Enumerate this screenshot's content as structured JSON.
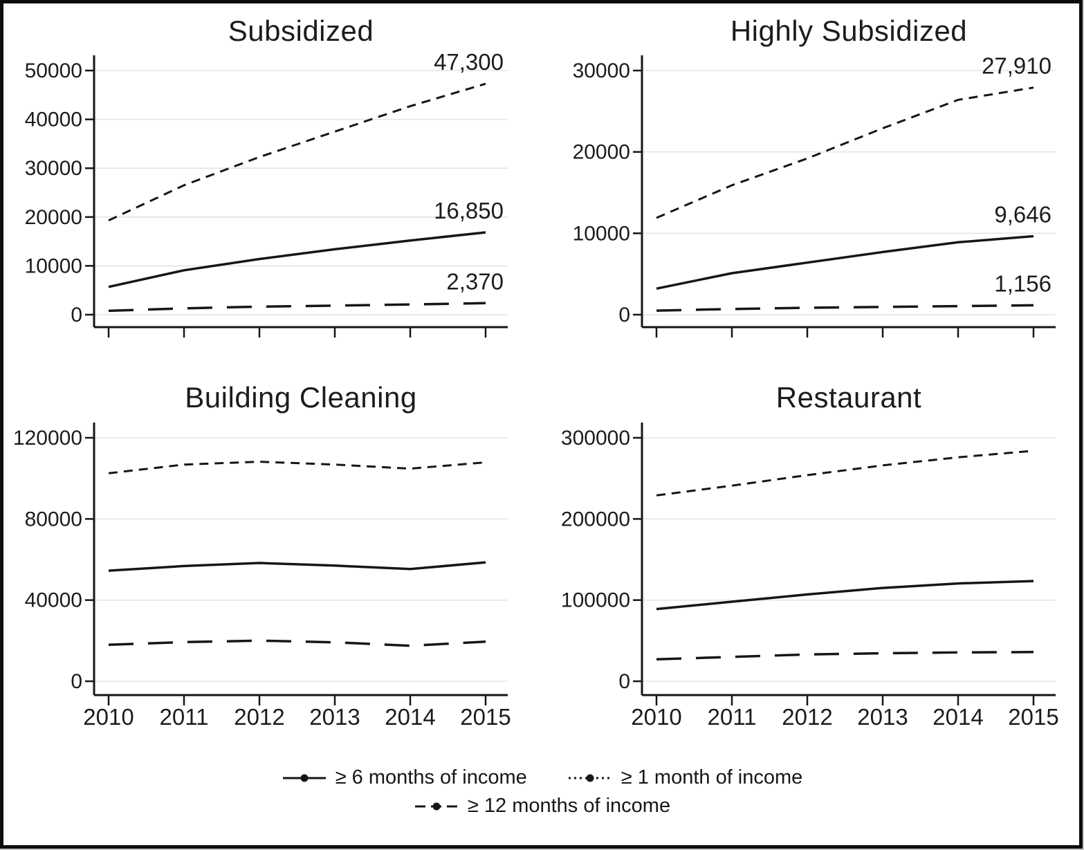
{
  "figure": {
    "colors": {
      "line": "#161616",
      "grid": "#e4e4e4",
      "text": "#1c1c1c",
      "background": "#ffffff",
      "border": "#0d0d0d"
    }
  },
  "legend": {
    "items": [
      {
        "label": "≥ 6 months of income",
        "style": "solid"
      },
      {
        "label": "≥ 1 month of income",
        "style": "dotted"
      },
      {
        "label": "≥ 12 months of income",
        "style": "longdash"
      }
    ]
  },
  "chart_data": [
    {
      "type": "line",
      "title": "Subsidized",
      "x": [
        2010,
        2011,
        2012,
        2013,
        2014,
        2015
      ],
      "xlabel": "",
      "ylabel": "",
      "ylim": [
        0,
        50000
      ],
      "yticks": [
        0,
        10000,
        20000,
        30000,
        40000,
        50000
      ],
      "grid": true,
      "show_x_labels": false,
      "legend_position": "none",
      "series": [
        {
          "name": "≥ 1 month of income",
          "style": "shortdash",
          "values": [
            19300,
            26500,
            32300,
            37500,
            42700,
            47300
          ],
          "end_label": "47,300"
        },
        {
          "name": "≥ 6 months of income",
          "style": "solid",
          "values": [
            5700,
            9100,
            11400,
            13400,
            15200,
            16850
          ],
          "end_label": "16,850"
        },
        {
          "name": "≥ 12 months of income",
          "style": "longdash",
          "values": [
            800,
            1300,
            1650,
            1850,
            2100,
            2370
          ],
          "end_label": "2,370"
        }
      ]
    },
    {
      "type": "line",
      "title": "Highly Subsidized",
      "x": [
        2010,
        2011,
        2012,
        2013,
        2014,
        2015
      ],
      "xlabel": "",
      "ylabel": "",
      "ylim": [
        0,
        30000
      ],
      "yticks": [
        0,
        10000,
        20000,
        30000
      ],
      "grid": true,
      "show_x_labels": false,
      "legend_position": "none",
      "series": [
        {
          "name": "≥ 1 month of income",
          "style": "shortdash",
          "values": [
            11900,
            15900,
            19200,
            22900,
            26400,
            27910
          ],
          "end_label": "27,910"
        },
        {
          "name": "≥ 6 months of income",
          "style": "solid",
          "values": [
            3200,
            5100,
            6400,
            7700,
            8900,
            9646
          ],
          "end_label": "9,646"
        },
        {
          "name": "≥ 12 months of income",
          "style": "longdash",
          "values": [
            500,
            700,
            850,
            950,
            1050,
            1156
          ],
          "end_label": "1,156"
        }
      ]
    },
    {
      "type": "line",
      "title": "Building Cleaning",
      "x": [
        2010,
        2011,
        2012,
        2013,
        2014,
        2015
      ],
      "xlabel": "",
      "ylabel": "",
      "ylim": [
        0,
        120000
      ],
      "yticks": [
        0,
        40000,
        80000,
        120000
      ],
      "grid": true,
      "show_x_labels": true,
      "legend_position": "none",
      "series": [
        {
          "name": "≥ 1 month of income",
          "style": "shortdash",
          "values": [
            102500,
            106800,
            108200,
            106800,
            104800,
            107900
          ]
        },
        {
          "name": "≥ 6 months of income",
          "style": "solid",
          "values": [
            54500,
            56800,
            58300,
            57000,
            55300,
            58600
          ]
        },
        {
          "name": "≥ 12 months of income",
          "style": "longdash",
          "values": [
            18000,
            19300,
            20000,
            19200,
            17500,
            19500
          ]
        }
      ]
    },
    {
      "type": "line",
      "title": "Restaurant",
      "x": [
        2010,
        2011,
        2012,
        2013,
        2014,
        2015
      ],
      "xlabel": "",
      "ylabel": "",
      "ylim": [
        0,
        300000
      ],
      "yticks": [
        0,
        100000,
        200000,
        300000
      ],
      "grid": true,
      "show_x_labels": true,
      "legend_position": "none",
      "series": [
        {
          "name": "≥ 1 month of income",
          "style": "shortdash",
          "values": [
            229000,
            241000,
            254000,
            266000,
            276000,
            284000
          ]
        },
        {
          "name": "≥ 6 months of income",
          "style": "solid",
          "values": [
            89000,
            98000,
            107000,
            115000,
            120500,
            123500
          ]
        },
        {
          "name": "≥ 12 months of income",
          "style": "longdash",
          "values": [
            27000,
            30000,
            33000,
            34500,
            35500,
            36000
          ]
        }
      ]
    }
  ]
}
